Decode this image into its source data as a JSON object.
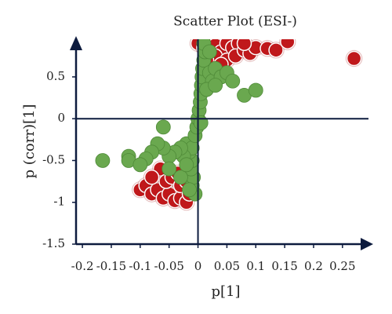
{
  "chart_data": {
    "type": "scatter",
    "title": "Scatter Plot (ESI-)",
    "x_label": "p[1]",
    "y_label": "p (corr)[1]",
    "xlim": [
      -0.211,
      0.295
    ],
    "ylim": [
      -1.5,
      0.95
    ],
    "xticks": [
      -0.2,
      -0.15,
      -0.1,
      -0.05,
      0,
      0.05,
      0.1,
      0.15,
      0.2,
      0.25
    ],
    "yticks": [
      -1.5,
      -1,
      -0.5,
      0,
      0.5
    ],
    "series": [
      {
        "color": "#c0181b",
        "x": [
          0.0,
          0.01,
          0.02,
          0.03,
          0.04,
          0.05,
          0.06,
          0.07,
          0.03,
          0.05,
          0.065,
          0.08,
          0.09,
          0.1,
          0.12,
          0.135,
          0.155,
          0.27,
          0.015,
          0.04,
          0.08,
          -0.1,
          -0.09,
          -0.08,
          -0.07,
          -0.06,
          -0.05,
          -0.04,
          -0.03,
          -0.02,
          -0.065,
          -0.055,
          -0.045,
          -0.03,
          -0.015,
          -0.08,
          -0.035,
          -0.02
        ],
        "values": [
          0.9,
          0.85,
          0.9,
          0.88,
          0.8,
          0.9,
          0.85,
          0.9,
          0.75,
          0.7,
          0.75,
          0.82,
          0.78,
          0.85,
          0.84,
          0.82,
          0.92,
          0.72,
          0.7,
          0.65,
          0.9,
          -0.85,
          -0.8,
          -0.9,
          -0.85,
          -0.95,
          -0.9,
          -0.98,
          -0.95,
          -1.0,
          -0.6,
          -0.75,
          -0.7,
          -0.8,
          -0.9,
          -0.7,
          -0.65,
          -0.75
        ]
      },
      {
        "color": "#6aa84f",
        "x": [
          -0.005,
          -0.01,
          -0.008,
          -0.012,
          -0.01,
          -0.015,
          -0.02,
          -0.01,
          -0.005,
          -0.002,
          0.0,
          0.002,
          0.004,
          0.005,
          0.006,
          0.007,
          0.008,
          0.01,
          0.012,
          0.01,
          0.02,
          0.025,
          0.03,
          0.04,
          0.05,
          0.015,
          0.03,
          -0.025,
          -0.03,
          -0.04,
          -0.05,
          -0.06,
          -0.07,
          -0.08,
          -0.06,
          -0.09,
          -0.12,
          -0.12,
          -0.165,
          -0.1,
          -0.05,
          -0.03,
          -0.02,
          0.08,
          0.1,
          0.06,
          0.02,
          -0.015,
          0.005
        ],
        "values": [
          -0.9,
          -0.8,
          -0.7,
          -0.6,
          -0.5,
          -0.4,
          -0.3,
          -0.35,
          -0.2,
          -0.1,
          0,
          0.1,
          0.2,
          0.3,
          0.4,
          0.5,
          0.6,
          0.7,
          0.8,
          0.9,
          0.55,
          0.45,
          0.6,
          0.5,
          0.55,
          0.35,
          0.4,
          -0.45,
          -0.35,
          -0.4,
          -0.45,
          -0.35,
          -0.3,
          -0.4,
          -0.1,
          -0.48,
          -0.45,
          -0.5,
          -0.5,
          -0.55,
          -0.6,
          -0.7,
          -0.55,
          0.28,
          0.34,
          0.45,
          0.8,
          -0.85,
          -0.05
        ]
      }
    ]
  }
}
